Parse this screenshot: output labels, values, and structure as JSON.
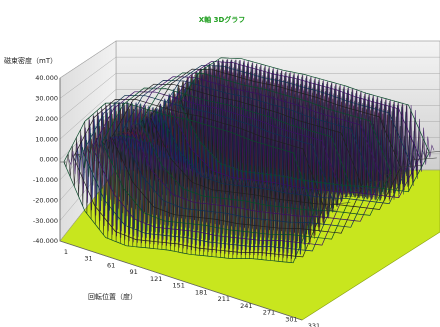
{
  "chart_data": {
    "type": "surface3d",
    "title": "X軸 3Dグラフ",
    "ylabel": "磁束密度（mT）",
    "xlabel": "回転位置（度）",
    "ylim": [
      -40000,
      40000
    ],
    "y_ticks": [
      "40.000",
      "30.000",
      "20.000",
      "10.000",
      "0.000",
      "-10.000",
      "-20.000",
      "-30.000",
      "-40.000"
    ],
    "x_ticks": [
      "1",
      "31",
      "61",
      "91",
      "121",
      "151",
      "181",
      "211",
      "241",
      "271",
      "301",
      "331"
    ],
    "floor_color": "#c8e61e",
    "wall_color": "#dcdcdc",
    "grid": true,
    "surface_envelope": {
      "x": [
        1,
        31,
        61,
        91,
        121,
        151,
        181,
        211,
        241,
        271,
        301,
        331,
        361
      ],
      "values": [
        200,
        22000,
        33000,
        35000,
        34000,
        33000,
        33000,
        32000,
        31000,
        29000,
        28000,
        27000,
        200
      ]
    }
  }
}
